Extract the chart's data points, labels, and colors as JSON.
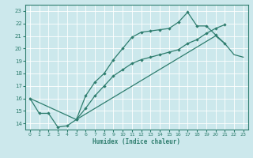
{
  "title": "",
  "xlabel": "Humidex (Indice chaleur)",
  "xlim": [
    -0.5,
    23.5
  ],
  "ylim": [
    13.5,
    23.5
  ],
  "xticks": [
    0,
    1,
    2,
    3,
    4,
    5,
    6,
    7,
    8,
    9,
    10,
    11,
    12,
    13,
    14,
    15,
    16,
    17,
    18,
    19,
    20,
    21,
    22,
    23
  ],
  "yticks": [
    14,
    15,
    16,
    17,
    18,
    19,
    20,
    21,
    22,
    23
  ],
  "line_color": "#2e7d6e",
  "bg_color": "#cce8ec",
  "grid_color": "#b8d8dc",
  "line1_x": [
    0,
    1,
    2,
    3,
    4,
    5,
    6,
    7,
    8,
    9,
    10,
    11,
    12,
    13,
    14,
    15,
    16,
    17,
    18,
    19,
    20,
    21
  ],
  "line1_y": [
    16.0,
    14.8,
    14.8,
    13.7,
    13.8,
    14.3,
    16.2,
    17.3,
    18.0,
    19.1,
    20.0,
    20.9,
    21.3,
    21.4,
    21.5,
    21.6,
    22.1,
    22.9,
    21.8,
    21.8,
    21.1,
    20.4
  ],
  "line2_x": [
    5,
    6,
    7,
    8,
    9,
    10,
    11,
    12,
    13,
    14,
    15,
    16,
    17,
    18,
    19,
    20,
    21
  ],
  "line2_y": [
    14.3,
    15.2,
    16.2,
    17.0,
    17.8,
    18.3,
    18.8,
    19.1,
    19.3,
    19.5,
    19.7,
    19.9,
    20.4,
    20.7,
    21.2,
    21.6,
    21.9
  ],
  "line3_x": [
    0,
    5,
    20,
    21,
    22,
    23
  ],
  "line3_y": [
    16.0,
    14.3,
    21.0,
    20.4,
    19.5,
    19.3
  ]
}
